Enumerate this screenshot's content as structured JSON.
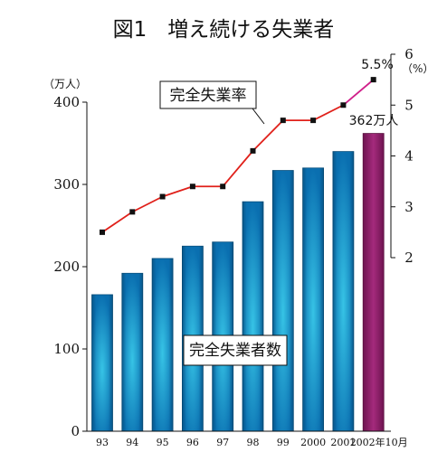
{
  "chart_data": {
    "type": "bar",
    "title": "図1　増え続ける失業者",
    "categories": [
      "93",
      "94",
      "95",
      "96",
      "97",
      "98",
      "99",
      "2000",
      "2001",
      "2002年10月"
    ],
    "series": [
      {
        "name": "完全失業者数",
        "type": "bar",
        "axis": "left",
        "values": [
          166,
          192,
          210,
          225,
          230,
          279,
          317,
          320,
          340,
          362
        ]
      },
      {
        "name": "完全失業率",
        "type": "line",
        "axis": "right",
        "values": [
          2.5,
          2.9,
          3.2,
          3.4,
          3.4,
          4.1,
          4.7,
          4.7,
          5.0,
          5.5
        ]
      }
    ],
    "y_left": {
      "unit": "（万人）",
      "ylim": [
        0,
        400
      ],
      "ticks": [
        "0",
        "100",
        "200",
        "300",
        "400"
      ]
    },
    "y_right": {
      "unit": "（%）",
      "ylim": [
        2,
        6
      ],
      "ticks": [
        "2",
        "3",
        "4",
        "5",
        "6"
      ]
    },
    "annotations": {
      "last_bar_label": "362万人",
      "last_point_label": "5.5%"
    },
    "colors": {
      "bar": "#0a6fb0",
      "bar_glow": "#37c4e6",
      "highlight_bar": "#96206e",
      "line": "#e0201a",
      "marker": "#111111"
    }
  }
}
